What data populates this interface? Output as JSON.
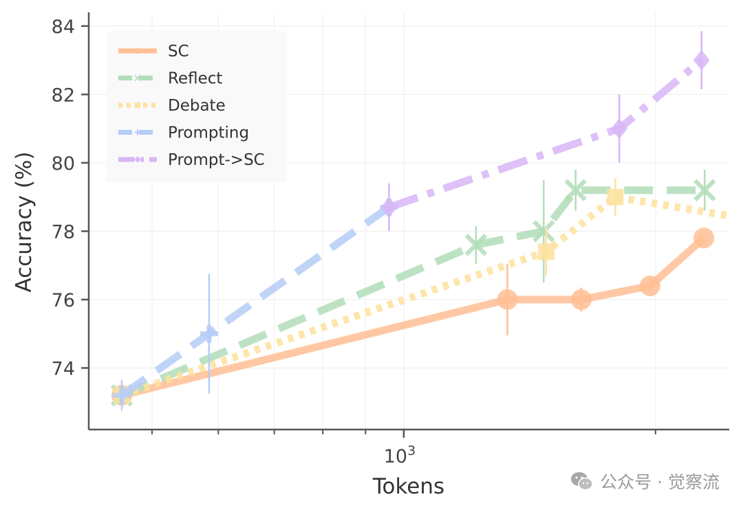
{
  "chart_data": {
    "type": "line",
    "xlabel": "Tokens",
    "ylabel": "Accuracy (%)",
    "xscale": "log",
    "xlim": [
      420,
      2450
    ],
    "ylim": [
      72.2,
      84.4
    ],
    "y_ticks": [
      74,
      76,
      78,
      80,
      82,
      84
    ],
    "x_major_tick_labels": [
      {
        "value": 1000,
        "base": "10",
        "exp": "3"
      }
    ],
    "x_minor_ticks": [
      500,
      600,
      700,
      800,
      900,
      2000,
      3000,
      4000,
      5000,
      6000
    ],
    "grid": true,
    "legend_position": "top-left",
    "series": [
      {
        "name": "SC",
        "color": "#FFBE94",
        "dash": "solid",
        "marker": "circle",
        "points": [
          {
            "x": 460,
            "y": 73.2,
            "err": 0.0
          },
          {
            "x": 1330,
            "y": 76.0,
            "err": 1.05
          },
          {
            "x": 1630,
            "y": 76.0,
            "err": 0.35
          },
          {
            "x": 1970,
            "y": 76.4,
            "err": 0.0
          },
          {
            "x": 2285,
            "y": 77.8,
            "err": 0.0
          }
        ]
      },
      {
        "name": "Reflect",
        "color": "#B2DDB8",
        "dash": "dashed",
        "marker": "x",
        "points": [
          {
            "x": 460,
            "y": 73.2,
            "err": 0.0
          },
          {
            "x": 1220,
            "y": 77.6,
            "err": 0.55
          },
          {
            "x": 1470,
            "y": 78.0,
            "err": 1.5
          },
          {
            "x": 1605,
            "y": 79.2,
            "err": 0.6
          },
          {
            "x": 2290,
            "y": 79.2,
            "err": 0.6
          }
        ]
      },
      {
        "name": "Debate",
        "color": "#FDE29C",
        "dash": "dotted",
        "marker": "square",
        "points": [
          {
            "x": 460,
            "y": 73.2,
            "err": 0.0
          },
          {
            "x": 1480,
            "y": 77.4,
            "err": 0.7
          },
          {
            "x": 1790,
            "y": 79.0,
            "err": 0.55
          },
          {
            "x": 2450,
            "y": 78.45,
            "err": 0.0
          }
        ]
      },
      {
        "name": "Prompting",
        "color": "#B5CDF7",
        "dash": "dashed",
        "marker": "plus",
        "points": [
          {
            "x": 460,
            "y": 73.2,
            "err": 0.45
          },
          {
            "x": 585,
            "y": 75.0,
            "err": 1.75
          },
          {
            "x": 960,
            "y": 78.7,
            "err": 0.0
          }
        ]
      },
      {
        "name": "Prompt->SC",
        "color": "#D7B6F6",
        "dash": "dashdot",
        "marker": "diamond",
        "points": [
          {
            "x": 960,
            "y": 78.7,
            "err": 0.7
          },
          {
            "x": 1810,
            "y": 81.0,
            "err": 1.0
          },
          {
            "x": 2270,
            "y": 83.0,
            "err": 0.85
          }
        ]
      }
    ]
  },
  "watermark": {
    "icon": "wechat-icon",
    "text": "公众号 · 觉察流"
  }
}
